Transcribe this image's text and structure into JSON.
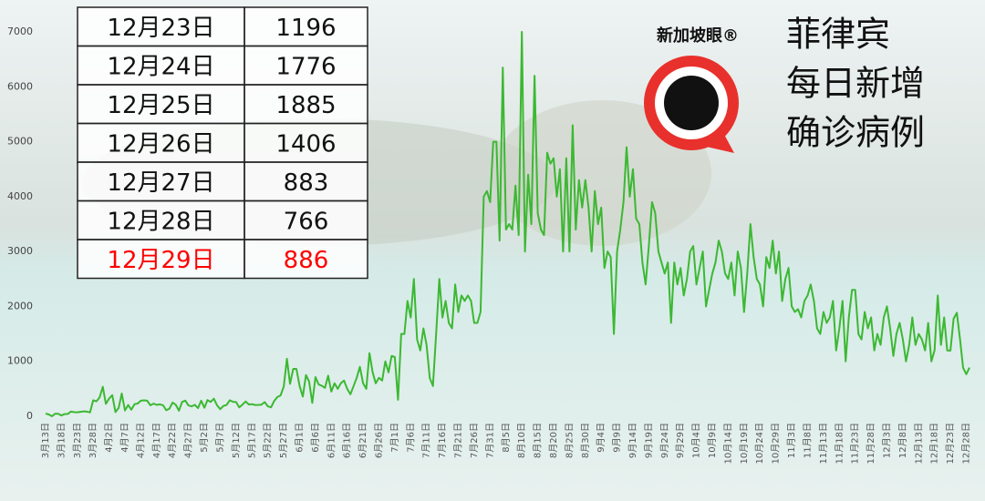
{
  "chart_data": {
    "type": "line",
    "title": [
      "菲律宾",
      "每日新增",
      "确诊病例"
    ],
    "logo": "新加坡眼®",
    "color": "#3cb832",
    "ylim": [
      0,
      7000
    ],
    "yticks": [
      0,
      1000,
      2000,
      3000,
      4000,
      5000,
      6000,
      7000
    ],
    "grid": false,
    "categories": [
      "3月13日",
      null,
      null,
      null,
      null,
      "3月18日",
      null,
      null,
      null,
      null,
      "3月23日",
      null,
      null,
      null,
      null,
      "3月28日",
      null,
      null,
      null,
      null,
      "4月2日",
      null,
      null,
      null,
      null,
      "4月7日",
      null,
      null,
      null,
      null,
      "4月12日",
      null,
      null,
      null,
      null,
      "4月17日",
      null,
      null,
      null,
      null,
      "4月22日",
      null,
      null,
      null,
      null,
      "4月27日",
      null,
      null,
      null,
      null,
      "5月2日",
      null,
      null,
      null,
      null,
      "5月7日",
      null,
      null,
      null,
      null,
      "5月12日",
      null,
      null,
      null,
      null,
      "5月17日",
      null,
      null,
      null,
      null,
      "5月22日",
      null,
      null,
      null,
      null,
      "5月27日",
      null,
      null,
      null,
      null,
      "6月1日",
      null,
      null,
      null,
      null,
      "6月6日",
      null,
      null,
      null,
      null,
      "6月11日",
      null,
      null,
      null,
      null,
      "6月16日",
      null,
      null,
      null,
      null,
      "6月21日",
      null,
      null,
      null,
      null,
      "6月26日",
      null,
      null,
      null,
      null,
      "7月1日",
      null,
      null,
      null,
      null,
      "7月6日",
      null,
      null,
      null,
      null,
      "7月11日",
      null,
      null,
      null,
      null,
      "7月16日",
      null,
      null,
      null,
      null,
      "7月21日",
      null,
      null,
      null,
      null,
      "7月26日",
      null,
      null,
      null,
      null,
      "7月31日",
      null,
      null,
      null,
      null,
      "8月5日",
      null,
      null,
      null,
      null,
      "8月10日",
      null,
      null,
      null,
      null,
      "8月15日",
      null,
      null,
      null,
      null,
      "8月20日",
      null,
      null,
      null,
      null,
      "8月25日",
      null,
      null,
      null,
      null,
      "8月30日",
      null,
      null,
      null,
      null,
      "9月4日",
      null,
      null,
      null,
      null,
      "9月9日",
      null,
      null,
      null,
      null,
      "9月14日",
      null,
      null,
      null,
      null,
      "9月19日",
      null,
      null,
      null,
      null,
      "9月24日",
      null,
      null,
      null,
      null,
      "9月29日",
      null,
      null,
      null,
      null,
      "10月4日",
      null,
      null,
      null,
      null,
      "10月9日",
      null,
      null,
      null,
      null,
      "10月14日",
      null,
      null,
      null,
      null,
      "10月19日",
      null,
      null,
      null,
      null,
      "10月24日",
      null,
      null,
      null,
      null,
      "10月29日",
      null,
      null,
      null,
      null,
      "11月3日",
      null,
      null,
      null,
      null,
      "11月8日",
      null,
      null,
      null,
      null,
      "11月13日",
      null,
      null,
      null,
      null,
      "11月18日",
      null,
      null,
      null,
      null,
      "11月23日",
      null,
      null,
      null,
      null,
      "11月28日",
      null,
      null,
      null,
      null,
      "12月3日",
      null,
      null,
      null,
      null,
      "12月8日",
      null,
      null,
      null,
      null,
      "12月13日",
      null,
      null,
      null,
      null,
      "12月18日",
      null,
      null,
      null,
      null,
      "12月23日",
      null,
      null,
      null,
      null,
      "12月28日",
      null
    ],
    "values": [
      52,
      34,
      0,
      47,
      45,
      15,
      39,
      43,
      87,
      75,
      73,
      82,
      90,
      84,
      71,
      292,
      272,
      343,
      538,
      227,
      322,
      385,
      76,
      152,
      414,
      106,
      206,
      119,
      220,
      233,
      284,
      291,
      284,
      200,
      230,
      207,
      218,
      200,
      110,
      140,
      250,
      211,
      102,
      262,
      285,
      198,
      181,
      209,
      150,
      284,
      156,
      295,
      262,
      320,
      199,
      130,
      187,
      205,
      292,
      264,
      258,
      162,
      213,
      268,
      215,
      221,
      205,
      208,
      213,
      258,
      180,
      163,
      279,
      350,
      380,
      539,
      1046,
      590,
      862,
      862,
      552,
      358,
      751,
      634,
      244,
      714,
      579,
      555,
      518,
      740,
      450,
      600,
      500,
      600,
      650,
      500,
      400,
      550,
      700,
      900,
      600,
      500,
      1150,
      800,
      600,
      700,
      650,
      1000,
      800,
      1100,
      1080,
      300,
      1500,
      1500,
      2100,
      1800,
      2500,
      1400,
      1200,
      1600,
      1300,
      700,
      550,
      1500,
      2500,
      1800,
      2100,
      1700,
      1600,
      2400,
      1900,
      2200,
      2100,
      2200,
      2100,
      1700,
      1700,
      1900,
      4000,
      4100,
      3900,
      5000,
      5000,
      3200,
      6350,
      3400,
      3500,
      3400,
      4200,
      3300,
      7000,
      3000,
      4400,
      3500,
      6200,
      3700,
      3400,
      3300,
      4800,
      4600,
      4700,
      4000,
      4500,
      3000,
      4700,
      3000,
      5300,
      3400,
      4300,
      3800,
      4300,
      3800,
      3000,
      4100,
      3500,
      3800,
      2700,
      3000,
      2900,
      1500,
      3000,
      3400,
      3900,
      4900,
      4000,
      4500,
      3600,
      3500,
      2800,
      2400,
      3100,
      3900,
      3700,
      3000,
      2800,
      2600,
      2800,
      1700,
      2800,
      2400,
      2700,
      2200,
      2500,
      3000,
      3100,
      2400,
      2700,
      3000,
      2000,
      2300,
      2600,
      2800,
      3200,
      3000,
      2600,
      2500,
      2800,
      2200,
      3000,
      2700,
      1900,
      2600,
      3500,
      2900,
      2500,
      2400,
      2000,
      2900,
      2700,
      3200,
      2600,
      3000,
      2100,
      2500,
      2700,
      2000,
      1900,
      1950,
      1800,
      2100,
      2200,
      2400,
      2100,
      1600,
      1500,
      1900,
      1700,
      1800,
      2100,
      1200,
      1600,
      2100,
      1000,
      1800,
      2300,
      2300,
      1500,
      1400,
      1900,
      1600,
      1800,
      1200,
      1500,
      1300,
      1800,
      2000,
      1600,
      1100,
      1500,
      1700,
      1400,
      1000,
      1300,
      1800,
      1300,
      1500,
      1400,
      1200,
      1700,
      1000,
      1200,
      2200,
      1300,
      1800,
      1200,
      1196,
      1776,
      1885,
      1406,
      883,
      766,
      886
    ],
    "table": {
      "rows": [
        [
          "12月23日",
          "1196"
        ],
        [
          "12月24日",
          "1776"
        ],
        [
          "12月25日",
          "1885"
        ],
        [
          "12月26日",
          "1406"
        ],
        [
          "12月27日",
          "883"
        ],
        [
          "12月28日",
          "766"
        ],
        [
          "12月29日",
          "886"
        ]
      ],
      "highlight_color": "#ff0000"
    }
  }
}
